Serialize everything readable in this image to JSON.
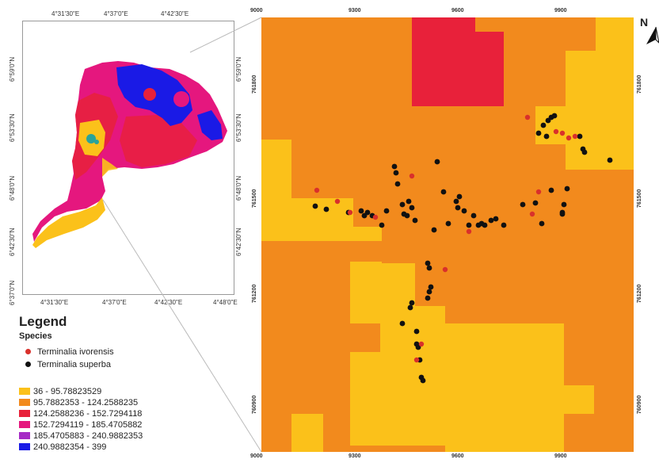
{
  "inset": {
    "lon_ticks_top": [
      "4°31'30\"E",
      "4°37'0\"E",
      "4°42'30\"E"
    ],
    "lon_ticks_bottom": [
      "4°31'30\"E",
      "4°37'0\"E",
      "4°42'30\"E",
      "4°48'0\"E"
    ],
    "lat_ticks_left": [
      "6°59'0\"N",
      "6°53'30\"N",
      "6°48'0\"N",
      "6°42'30\"N",
      "6°37'0\"N"
    ],
    "lat_ticks_right": [
      "6°59'0\"N",
      "6°53'30\"N",
      "6°48'0\"N",
      "6°42'30\"N"
    ]
  },
  "main_map": {
    "x_ticks": [
      "9000",
      "9300",
      "9600",
      "9900"
    ],
    "y_ticks": [
      "761800",
      "761500",
      "761200",
      "760900"
    ],
    "north_arrow_label": "N"
  },
  "legend": {
    "title": "Legend",
    "species_title": "Species",
    "species": [
      {
        "label": "Terminalia ivorensis",
        "color": "#d9302b"
      },
      {
        "label": "Terminalia superba",
        "color": "#111111"
      }
    ],
    "classes": [
      {
        "label": "36 - 95.78823529",
        "color": "#fbc11a"
      },
      {
        "label": "95.7882353 - 124.2588235",
        "color": "#f28a1d"
      },
      {
        "label": "124.2588236 - 152.7294118",
        "color": "#e8213a"
      },
      {
        "label": "152.7294119 - 185.4705882",
        "color": "#e5177e"
      },
      {
        "label": "185.4705883 - 240.9882353",
        "color": "#a62bc5"
      },
      {
        "label": "240.9882354 - 399",
        "color": "#1a1ae6"
      }
    ]
  },
  "colors": {
    "yellow": "#fbc11a",
    "orange": "#f28a1d",
    "red": "#e8213a",
    "magenta": "#e5177e",
    "blue": "#1a1ae6",
    "teal": "#2aa39a"
  }
}
